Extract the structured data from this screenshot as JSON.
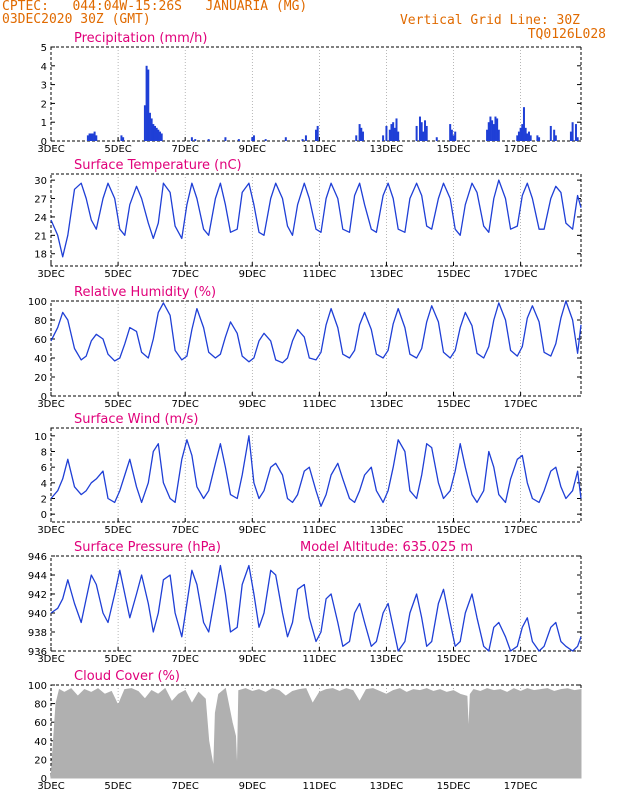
{
  "header": {
    "line1": "CPTEC:   044:04W-15:26S   JANUARIA (MG)",
    "line2": "03DEC2020 30Z (GMT)",
    "grid_note": "Vertical Grid Line: 30Z",
    "code": "TQ0126L028"
  },
  "colors": {
    "header": "#e06a00",
    "title": "#e0007a",
    "series": "#1f3fd6",
    "cloud": "#b0b0b0"
  },
  "x_labels": [
    "3DEC",
    "5DEC",
    "7DEC",
    "9DEC",
    "11DEC",
    "13DEC",
    "15DEC",
    "17DEC"
  ],
  "chart_data": [
    {
      "type": "bar",
      "title": "Precipitation  (mm/h)",
      "ylim": [
        0,
        5
      ],
      "yticks": [
        0,
        1,
        2,
        3,
        4,
        5
      ],
      "xlim": [
        3,
        18.8
      ],
      "x": [
        4.1,
        4.15,
        4.2,
        4.25,
        4.3,
        4.35,
        5.1,
        5.15,
        5.8,
        5.85,
        5.9,
        5.95,
        6.0,
        6.05,
        6.1,
        6.15,
        6.2,
        6.25,
        6.3,
        7.2,
        7.3,
        7.7,
        8.2,
        8.6,
        9.0,
        9.05,
        9.4,
        10.0,
        10.5,
        10.6,
        10.9,
        10.95,
        12.1,
        12.2,
        12.25,
        12.3,
        12.9,
        13.0,
        13.1,
        13.15,
        13.2,
        13.25,
        13.3,
        13.35,
        13.9,
        14.0,
        14.05,
        14.1,
        14.15,
        14.2,
        14.5,
        14.9,
        14.95,
        15.0,
        15.05,
        16.0,
        16.05,
        16.1,
        16.15,
        16.2,
        16.25,
        16.3,
        16.35,
        16.9,
        16.95,
        17.0,
        17.05,
        17.1,
        17.15,
        17.2,
        17.25,
        17.3,
        17.5,
        17.55,
        17.9,
        18.0,
        18.05,
        18.5,
        18.55,
        18.65,
        18.7
      ],
      "values": [
        0.3,
        0.4,
        0.4,
        0.4,
        0.5,
        0.3,
        0.3,
        0.2,
        1.9,
        4.0,
        3.8,
        1.5,
        1.2,
        0.9,
        0.8,
        0.7,
        0.6,
        0.5,
        0.4,
        0.2,
        0.1,
        0.1,
        0.2,
        0.1,
        0.2,
        0.3,
        0.1,
        0.2,
        0.1,
        0.3,
        0.6,
        0.8,
        0.3,
        0.9,
        0.7,
        0.5,
        0.3,
        0.8,
        0.6,
        0.9,
        1.0,
        0.7,
        1.2,
        0.5,
        0.8,
        1.3,
        1.0,
        0.5,
        1.1,
        0.8,
        0.2,
        0.9,
        0.6,
        0.3,
        0.5,
        0.6,
        1.0,
        1.3,
        1.1,
        0.9,
        1.3,
        1.2,
        0.6,
        0.3,
        0.5,
        0.7,
        0.9,
        1.8,
        0.7,
        0.4,
        0.5,
        0.3,
        0.3,
        0.2,
        0.8,
        0.6,
        0.3,
        0.5,
        1.0,
        0.9,
        0.2
      ]
    },
    {
      "type": "line",
      "title": "Surface Temperature (nC)",
      "ylim": [
        16,
        31
      ],
      "yticks": [
        18,
        21,
        24,
        27,
        30
      ],
      "xlim": [
        3,
        18.8
      ],
      "x": [
        3.0,
        3.2,
        3.35,
        3.5,
        3.7,
        3.9,
        4.05,
        4.2,
        4.35,
        4.55,
        4.7,
        4.9,
        5.05,
        5.2,
        5.35,
        5.55,
        5.7,
        5.9,
        6.05,
        6.2,
        6.35,
        6.55,
        6.7,
        6.9,
        7.05,
        7.2,
        7.35,
        7.55,
        7.7,
        7.9,
        8.05,
        8.2,
        8.35,
        8.55,
        8.7,
        8.9,
        9.05,
        9.2,
        9.35,
        9.55,
        9.7,
        9.9,
        10.05,
        10.2,
        10.35,
        10.55,
        10.7,
        10.9,
        11.05,
        11.2,
        11.35,
        11.55,
        11.7,
        11.9,
        12.05,
        12.2,
        12.35,
        12.55,
        12.7,
        12.9,
        13.05,
        13.2,
        13.35,
        13.55,
        13.7,
        13.9,
        14.05,
        14.2,
        14.35,
        14.55,
        14.7,
        14.9,
        15.05,
        15.2,
        15.35,
        15.55,
        15.7,
        15.9,
        16.05,
        16.2,
        16.35,
        16.55,
        16.7,
        16.9,
        17.05,
        17.2,
        17.35,
        17.55,
        17.7,
        17.9,
        18.05,
        18.2,
        18.35,
        18.55,
        18.7,
        18.8
      ],
      "values": [
        23.5,
        21,
        17.5,
        21,
        28.5,
        29.5,
        27,
        23.5,
        22,
        27,
        29.5,
        27,
        22,
        21,
        26,
        29,
        27,
        23,
        20.5,
        23,
        29.5,
        28,
        22.5,
        20.5,
        26,
        29.5,
        27,
        22,
        21,
        27,
        29.5,
        26,
        21.5,
        22,
        28,
        29.5,
        26,
        21.5,
        21,
        27,
        29.5,
        27,
        22.5,
        21,
        26,
        29.5,
        27,
        22,
        21.5,
        27,
        29.5,
        27,
        22,
        21.5,
        27.5,
        29.5,
        26,
        22,
        21.5,
        27.5,
        29.5,
        27,
        22,
        21.5,
        27,
        29.5,
        27.5,
        22.5,
        22,
        27,
        29.5,
        27,
        22,
        21,
        26,
        29.5,
        28,
        22.5,
        21.5,
        27,
        30,
        27,
        22,
        22.5,
        27.5,
        29.5,
        27,
        22,
        22,
        27,
        29,
        28,
        23,
        22,
        27.5,
        25.5
      ]
    },
    {
      "type": "line",
      "title": "Relative Humidity (%)",
      "ylim": [
        0,
        100
      ],
      "yticks": [
        0,
        20,
        40,
        60,
        80,
        100
      ],
      "xlim": [
        3,
        18.8
      ],
      "x": [
        3.0,
        3.2,
        3.35,
        3.5,
        3.7,
        3.9,
        4.05,
        4.2,
        4.35,
        4.55,
        4.7,
        4.9,
        5.05,
        5.2,
        5.35,
        5.55,
        5.7,
        5.9,
        6.05,
        6.2,
        6.35,
        6.55,
        6.7,
        6.9,
        7.05,
        7.2,
        7.35,
        7.55,
        7.7,
        7.9,
        8.05,
        8.2,
        8.35,
        8.55,
        8.7,
        8.9,
        9.05,
        9.2,
        9.35,
        9.55,
        9.7,
        9.9,
        10.05,
        10.2,
        10.35,
        10.55,
        10.7,
        10.9,
        11.05,
        11.2,
        11.35,
        11.55,
        11.7,
        11.9,
        12.05,
        12.2,
        12.35,
        12.55,
        12.7,
        12.9,
        13.05,
        13.2,
        13.35,
        13.55,
        13.7,
        13.9,
        14.05,
        14.2,
        14.35,
        14.55,
        14.7,
        14.9,
        15.05,
        15.2,
        15.35,
        15.55,
        15.7,
        15.9,
        16.05,
        16.2,
        16.35,
        16.55,
        16.7,
        16.9,
        17.05,
        17.2,
        17.35,
        17.55,
        17.7,
        17.9,
        18.05,
        18.2,
        18.35,
        18.55,
        18.7,
        18.8
      ],
      "values": [
        58,
        72,
        88,
        80,
        50,
        38,
        42,
        58,
        65,
        60,
        44,
        37,
        40,
        55,
        72,
        68,
        46,
        40,
        60,
        88,
        98,
        85,
        48,
        38,
        42,
        70,
        92,
        72,
        46,
        40,
        44,
        62,
        78,
        66,
        42,
        36,
        40,
        58,
        66,
        58,
        38,
        35,
        40,
        58,
        70,
        62,
        40,
        38,
        46,
        75,
        92,
        72,
        44,
        40,
        48,
        75,
        88,
        70,
        44,
        40,
        48,
        76,
        92,
        72,
        44,
        40,
        50,
        78,
        95,
        78,
        46,
        40,
        48,
        72,
        88,
        74,
        45,
        40,
        52,
        80,
        98,
        80,
        48,
        42,
        52,
        82,
        95,
        78,
        46,
        42,
        55,
        82,
        100,
        80,
        45,
        75
      ]
    },
    {
      "type": "line",
      "title": "Surface Wind (m/s)",
      "ylim": [
        -1,
        11
      ],
      "yticks": [
        0,
        2,
        4,
        6,
        8,
        10
      ],
      "xlim": [
        3,
        18.8
      ],
      "x": [
        3.0,
        3.2,
        3.35,
        3.5,
        3.7,
        3.9,
        4.05,
        4.2,
        4.35,
        4.55,
        4.7,
        4.9,
        5.05,
        5.2,
        5.35,
        5.55,
        5.7,
        5.9,
        6.05,
        6.2,
        6.35,
        6.55,
        6.7,
        6.9,
        7.05,
        7.2,
        7.35,
        7.55,
        7.7,
        7.9,
        8.05,
        8.2,
        8.35,
        8.55,
        8.7,
        8.9,
        9.05,
        9.2,
        9.35,
        9.55,
        9.7,
        9.9,
        10.05,
        10.2,
        10.35,
        10.55,
        10.7,
        10.9,
        11.05,
        11.2,
        11.35,
        11.55,
        11.7,
        11.9,
        12.05,
        12.2,
        12.35,
        12.55,
        12.7,
        12.9,
        13.05,
        13.2,
        13.35,
        13.55,
        13.7,
        13.9,
        14.05,
        14.2,
        14.35,
        14.55,
        14.7,
        14.9,
        15.05,
        15.2,
        15.35,
        15.55,
        15.7,
        15.9,
        16.05,
        16.2,
        16.35,
        16.55,
        16.7,
        16.9,
        17.05,
        17.2,
        17.35,
        17.55,
        17.7,
        17.9,
        18.05,
        18.2,
        18.35,
        18.55,
        18.7,
        18.8
      ],
      "values": [
        2,
        3,
        4.5,
        7,
        3.5,
        2.5,
        3,
        4,
        4.5,
        5.5,
        2,
        1.5,
        3,
        5,
        7,
        3.5,
        1.5,
        4,
        8,
        9,
        4,
        2,
        1.5,
        7,
        9.5,
        7.5,
        3.5,
        2,
        3,
        6.5,
        9,
        6,
        2.5,
        2,
        5,
        10,
        4,
        2,
        3,
        6,
        6.5,
        5,
        2,
        1.5,
        2.5,
        5.5,
        6,
        3,
        1,
        2.5,
        5,
        6.5,
        4.5,
        2,
        1.5,
        3,
        5,
        6,
        3,
        1.5,
        3,
        6,
        9.5,
        8,
        3,
        2,
        5,
        9,
        8.5,
        4,
        2,
        3,
        5.5,
        9,
        6,
        2.5,
        1.5,
        3,
        8,
        6,
        2.5,
        1.5,
        4.5,
        7,
        7.5,
        4,
        2,
        1.5,
        3,
        5.5,
        6,
        3.5,
        2,
        3,
        5.5,
        2
      ]
    },
    {
      "type": "line",
      "title": "Surface Pressure (hPa)",
      "annotation": "Model Altitude: 635.025 m",
      "ylim": [
        936,
        946
      ],
      "yticks": [
        936,
        938,
        940,
        942,
        944,
        946
      ],
      "xlim": [
        3,
        18.8
      ],
      "x": [
        3.0,
        3.2,
        3.35,
        3.5,
        3.7,
        3.9,
        4.05,
        4.2,
        4.35,
        4.55,
        4.7,
        4.9,
        5.05,
        5.2,
        5.35,
        5.55,
        5.7,
        5.9,
        6.05,
        6.2,
        6.35,
        6.55,
        6.7,
        6.9,
        7.05,
        7.2,
        7.35,
        7.55,
        7.7,
        7.9,
        8.05,
        8.2,
        8.35,
        8.55,
        8.7,
        8.9,
        9.05,
        9.2,
        9.35,
        9.55,
        9.7,
        9.9,
        10.05,
        10.2,
        10.35,
        10.55,
        10.7,
        10.9,
        11.05,
        11.2,
        11.35,
        11.55,
        11.7,
        11.9,
        12.05,
        12.2,
        12.35,
        12.55,
        12.7,
        12.9,
        13.05,
        13.2,
        13.35,
        13.55,
        13.7,
        13.9,
        14.05,
        14.2,
        14.35,
        14.55,
        14.7,
        14.9,
        15.05,
        15.2,
        15.35,
        15.55,
        15.7,
        15.9,
        16.05,
        16.2,
        16.35,
        16.55,
        16.7,
        16.9,
        17.05,
        17.2,
        17.35,
        17.55,
        17.7,
        17.9,
        18.05,
        18.2,
        18.35,
        18.55,
        18.7,
        18.8
      ],
      "values": [
        940,
        940.5,
        941.5,
        943.5,
        941,
        939,
        941.5,
        944,
        943,
        940,
        939,
        942,
        944.5,
        942,
        939.5,
        942,
        944,
        941,
        938,
        940,
        943.5,
        944,
        940,
        937.5,
        941,
        944.5,
        943,
        939,
        938,
        942,
        945,
        942,
        938,
        938.5,
        943,
        945,
        942,
        938.5,
        940,
        944.5,
        944,
        940,
        937.5,
        939,
        942.5,
        943,
        939.5,
        937,
        938,
        941.5,
        942,
        939,
        936.5,
        937,
        940,
        941,
        939,
        936.5,
        937,
        940,
        941,
        938.5,
        936,
        937,
        940,
        942,
        939.5,
        936.5,
        937,
        941,
        942.5,
        939,
        936.5,
        937,
        940,
        942,
        939.5,
        936.5,
        936,
        938.5,
        939,
        937.5,
        936,
        936.5,
        938.5,
        939.5,
        937,
        936,
        936.5,
        938.5,
        939,
        937,
        936.5,
        936,
        936.5,
        937.5
      ]
    },
    {
      "type": "area",
      "title": "Cloud Cover (%)",
      "ylim": [
        0,
        100
      ],
      "yticks": [
        0,
        20,
        40,
        60,
        80,
        100
      ],
      "xlim": [
        3,
        18.8
      ],
      "x": [
        3.0,
        3.15,
        3.25,
        3.4,
        3.6,
        3.8,
        4.0,
        4.2,
        4.4,
        4.6,
        4.8,
        5.0,
        5.2,
        5.4,
        5.6,
        5.8,
        6.0,
        6.2,
        6.4,
        6.6,
        6.8,
        7.0,
        7.2,
        7.4,
        7.6,
        7.7,
        7.8,
        7.85,
        7.9,
        8.0,
        8.2,
        8.4,
        8.5,
        8.55,
        8.6,
        8.8,
        9.0,
        9.2,
        9.4,
        9.6,
        9.8,
        10.0,
        10.2,
        10.4,
        10.6,
        10.8,
        11.0,
        11.2,
        11.4,
        11.6,
        11.8,
        12.0,
        12.2,
        12.4,
        12.6,
        12.8,
        13.0,
        13.2,
        13.4,
        13.6,
        13.8,
        14.0,
        14.2,
        14.4,
        14.6,
        14.8,
        15.0,
        15.2,
        15.4,
        15.45,
        15.5,
        15.6,
        15.8,
        16.0,
        16.2,
        16.4,
        16.6,
        16.8,
        17.0,
        17.2,
        17.4,
        17.6,
        17.8,
        18.0,
        18.2,
        18.4,
        18.6,
        18.8
      ],
      "values": [
        0,
        80,
        95,
        92,
        96,
        88,
        95,
        92,
        96,
        90,
        93,
        78,
        95,
        96,
        93,
        85,
        94,
        90,
        96,
        82,
        90,
        94,
        80,
        92,
        85,
        40,
        20,
        10,
        70,
        90,
        96,
        60,
        45,
        0,
        94,
        96,
        93,
        95,
        92,
        96,
        94,
        88,
        93,
        95,
        96,
        80,
        92,
        95,
        96,
        93,
        96,
        94,
        82,
        95,
        96,
        93,
        90,
        94,
        96,
        92,
        95,
        94,
        96,
        93,
        95,
        92,
        94,
        90,
        88,
        45,
        90,
        95,
        93,
        96,
        94,
        95,
        92,
        96,
        93,
        96,
        94,
        95,
        96,
        93,
        95,
        96,
        94,
        95
      ]
    }
  ]
}
